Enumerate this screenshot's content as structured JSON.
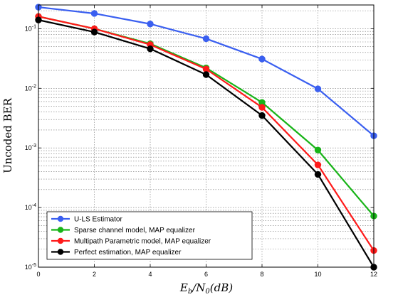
{
  "chart_data": {
    "type": "line",
    "title": "",
    "xlabel": "E_b/N_0(dB)",
    "ylabel": "Uncoded BER",
    "xlim": [
      0,
      12
    ],
    "ylim": [
      1e-05,
      0.25
    ],
    "yscale": "log",
    "grid": true,
    "legend_position": "bottom-left",
    "x": [
      0,
      2,
      4,
      6,
      8,
      10,
      12
    ],
    "x_tick_labels": [
      "0",
      "2",
      "4",
      "6",
      "8",
      "10",
      "12"
    ],
    "y_ticks": [
      {
        "value": 0.1,
        "base": "10",
        "exp": "-1"
      },
      {
        "value": 0.01,
        "base": "10",
        "exp": "-2"
      },
      {
        "value": 0.001,
        "base": "10",
        "exp": "-3"
      },
      {
        "value": 0.0001,
        "base": "10",
        "exp": "-4"
      },
      {
        "value": 1e-05,
        "base": "10",
        "exp": "-5"
      }
    ],
    "series": [
      {
        "name": "U-LS Estimator",
        "color": "#3a5ff0",
        "values": [
          0.23,
          0.18,
          0.12,
          0.068,
          0.031,
          0.0098,
          0.0016
        ]
      },
      {
        "name": "Sparse channel model, MAP equalizer",
        "color": "#18b418",
        "values": [
          0.16,
          0.1,
          0.056,
          0.022,
          0.0058,
          0.00092,
          7.2e-05
        ]
      },
      {
        "name": "Multipath Parametric model, MAP equalizer",
        "color": "#ff1a1a",
        "values": [
          0.16,
          0.1,
          0.054,
          0.021,
          0.0048,
          0.00052,
          1.9e-05
        ]
      },
      {
        "name": "Perfect estimation, MAP equalizer",
        "color": "#000000",
        "values": [
          0.14,
          0.088,
          0.046,
          0.017,
          0.0035,
          0.00036,
          1e-05
        ]
      }
    ]
  }
}
